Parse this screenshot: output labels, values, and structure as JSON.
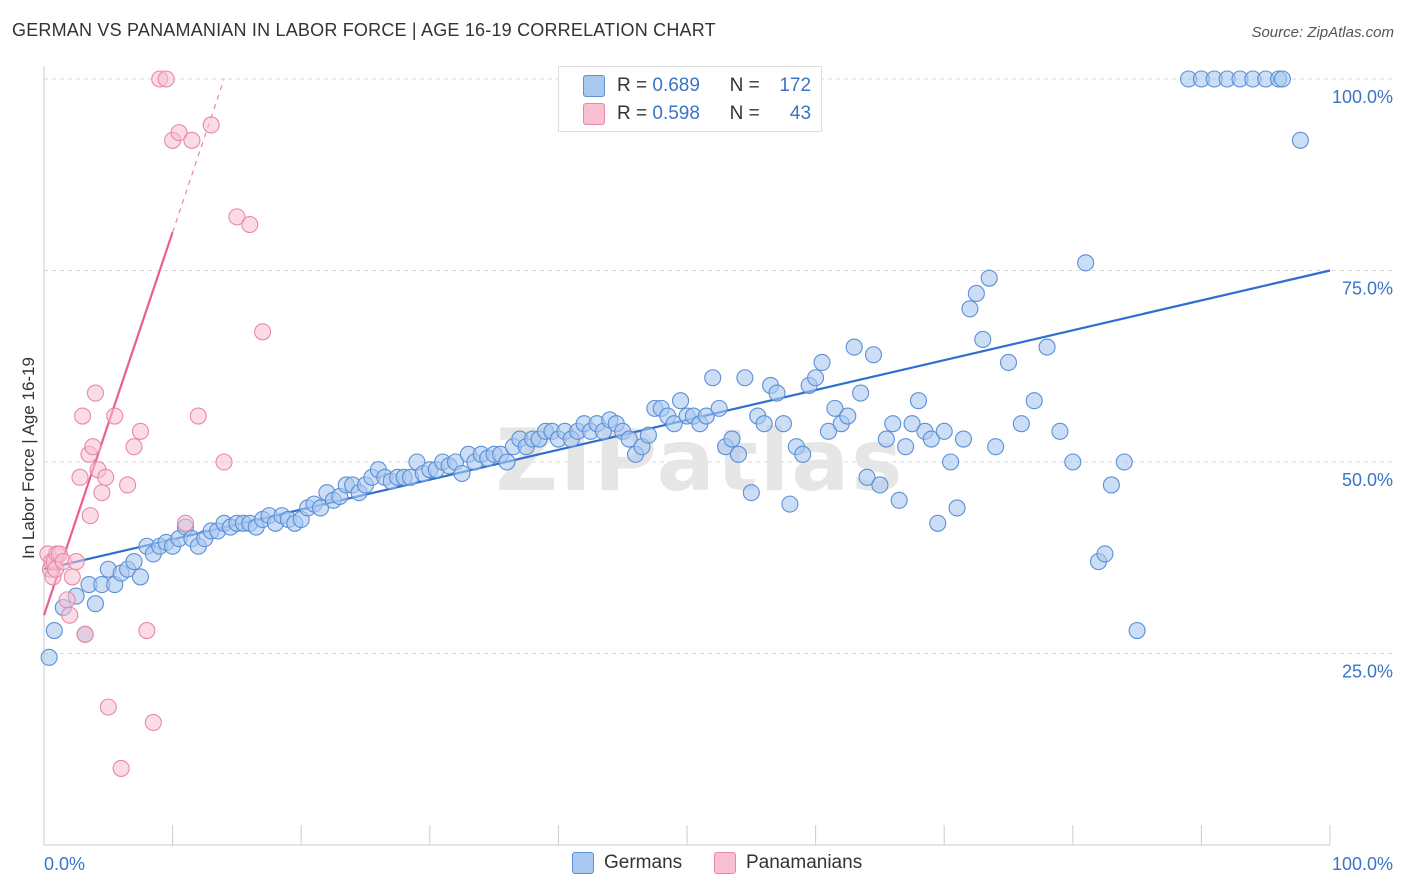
{
  "title": "GERMAN VS PANAMANIAN IN LABOR FORCE | AGE 16-19 CORRELATION CHART",
  "source": "Source: ZipAtlas.com",
  "watermark": "ZIPatlas",
  "stats_legend": {
    "rows": [
      {
        "r_label": "R =",
        "r_value": "0.689",
        "n_label": "N =",
        "n_value": "172"
      },
      {
        "r_label": "R =",
        "r_value": "0.598",
        "n_label": "N =",
        "n_value": "43"
      }
    ]
  },
  "colors": {
    "germans_fill": "#a9c8f0",
    "germans_stroke": "#5b8fd6",
    "germans_line": "#2f6fd0",
    "panamanians_fill": "#f8c0d0",
    "panamanians_stroke": "#e888a8",
    "panamanians_line": "#e8608e",
    "value_text": "#3a74c9"
  },
  "chart_data": {
    "type": "scatter",
    "title": "GERMAN VS PANAMANIAN IN LABOR FORCE | AGE 16-19 CORRELATION CHART",
    "ylabel": "In Labor Force | Age 16-19",
    "xlabel": "",
    "xlim": [
      0,
      100
    ],
    "ylim": [
      0,
      100
    ],
    "x_tick_labels": [
      {
        "value": 0,
        "label": "0.0%"
      },
      {
        "value": 100,
        "label": "100.0%"
      }
    ],
    "y_tick_labels": [
      {
        "value": 25,
        "label": "25.0%"
      },
      {
        "value": 50,
        "label": "50.0%"
      },
      {
        "value": 75,
        "label": "75.0%"
      },
      {
        "value": 100,
        "label": "100.0%"
      }
    ],
    "grid": true,
    "legend_position": "bottom-center",
    "series": [
      {
        "name": "Germans",
        "R": 0.689,
        "N": 172,
        "trend": {
          "x": [
            0,
            100
          ],
          "y": [
            36,
            75
          ],
          "dashed_beyond": null
        },
        "points": [
          [
            0.4,
            24.5
          ],
          [
            0.8,
            28
          ],
          [
            1.5,
            31
          ],
          [
            2.5,
            32.5
          ],
          [
            3.2,
            27.5
          ],
          [
            3.5,
            34
          ],
          [
            4,
            31.5
          ],
          [
            4.5,
            34
          ],
          [
            5,
            36
          ],
          [
            5.5,
            34
          ],
          [
            6,
            35.5
          ],
          [
            6.5,
            36
          ],
          [
            7,
            37
          ],
          [
            7.5,
            35
          ],
          [
            8,
            39
          ],
          [
            8.5,
            38
          ],
          [
            9,
            39
          ],
          [
            9.5,
            39.5
          ],
          [
            10,
            39
          ],
          [
            10.5,
            40
          ],
          [
            11,
            41.5
          ],
          [
            11.5,
            40
          ],
          [
            12,
            39
          ],
          [
            12.5,
            40
          ],
          [
            13,
            41
          ],
          [
            13.5,
            41
          ],
          [
            14,
            42
          ],
          [
            14.5,
            41.5
          ],
          [
            15,
            42
          ],
          [
            15.5,
            42
          ],
          [
            16,
            42
          ],
          [
            16.5,
            41.5
          ],
          [
            17,
            42.5
          ],
          [
            17.5,
            43
          ],
          [
            18,
            42
          ],
          [
            18.5,
            43
          ],
          [
            19,
            42.5
          ],
          [
            19.5,
            42
          ],
          [
            20,
            42.5
          ],
          [
            20.5,
            44
          ],
          [
            21,
            44.5
          ],
          [
            21.5,
            44
          ],
          [
            22,
            46
          ],
          [
            22.5,
            45
          ],
          [
            23,
            45.5
          ],
          [
            23.5,
            47
          ],
          [
            24,
            47
          ],
          [
            24.5,
            46
          ],
          [
            25,
            47
          ],
          [
            25.5,
            48
          ],
          [
            26,
            49
          ],
          [
            26.5,
            48
          ],
          [
            27,
            47.5
          ],
          [
            27.5,
            48
          ],
          [
            28,
            48
          ],
          [
            28.5,
            48
          ],
          [
            29,
            50
          ],
          [
            29.5,
            48.5
          ],
          [
            30,
            49
          ],
          [
            30.5,
            49
          ],
          [
            31,
            50
          ],
          [
            31.5,
            49.5
          ],
          [
            32,
            50
          ],
          [
            32.5,
            48.5
          ],
          [
            33,
            51
          ],
          [
            33.5,
            50
          ],
          [
            34,
            51
          ],
          [
            34.5,
            50.5
          ],
          [
            35,
            51
          ],
          [
            35.5,
            51
          ],
          [
            36,
            50
          ],
          [
            36.5,
            52
          ],
          [
            37,
            53
          ],
          [
            37.5,
            52
          ],
          [
            38,
            53
          ],
          [
            38.5,
            53
          ],
          [
            39,
            54
          ],
          [
            39.5,
            54
          ],
          [
            40,
            53
          ],
          [
            40.5,
            54
          ],
          [
            41,
            53
          ],
          [
            41.5,
            54
          ],
          [
            42,
            55
          ],
          [
            42.5,
            54
          ],
          [
            43,
            55
          ],
          [
            43.5,
            54
          ],
          [
            44,
            55.5
          ],
          [
            44.5,
            55
          ],
          [
            45,
            54
          ],
          [
            45.5,
            53
          ],
          [
            46,
            51
          ],
          [
            46.5,
            52
          ],
          [
            47,
            53.5
          ],
          [
            47.5,
            57
          ],
          [
            48,
            57
          ],
          [
            48.5,
            56
          ],
          [
            49,
            55
          ],
          [
            49.5,
            58
          ],
          [
            50,
            56
          ],
          [
            50.5,
            56
          ],
          [
            51,
            55
          ],
          [
            51.5,
            56
          ],
          [
            52,
            61
          ],
          [
            52.5,
            57
          ],
          [
            53,
            52
          ],
          [
            53.5,
            53
          ],
          [
            54,
            51
          ],
          [
            54.5,
            61
          ],
          [
            55,
            46
          ],
          [
            55.5,
            56
          ],
          [
            56,
            55
          ],
          [
            56.5,
            60
          ],
          [
            57,
            59
          ],
          [
            57.5,
            55
          ],
          [
            58,
            44.5
          ],
          [
            58.5,
            52
          ],
          [
            59,
            51
          ],
          [
            59.5,
            60
          ],
          [
            60,
            61
          ],
          [
            60.5,
            63
          ],
          [
            61,
            54
          ],
          [
            61.5,
            57
          ],
          [
            62,
            55
          ],
          [
            62.5,
            56
          ],
          [
            63,
            65
          ],
          [
            63.5,
            59
          ],
          [
            64,
            48
          ],
          [
            64.5,
            64
          ],
          [
            65,
            47
          ],
          [
            65.5,
            53
          ],
          [
            66,
            55
          ],
          [
            66.5,
            45
          ],
          [
            67,
            52
          ],
          [
            67.5,
            55
          ],
          [
            68,
            58
          ],
          [
            68.5,
            54
          ],
          [
            69,
            53
          ],
          [
            69.5,
            42
          ],
          [
            70,
            54
          ],
          [
            70.5,
            50
          ],
          [
            71,
            44
          ],
          [
            71.5,
            53
          ],
          [
            72,
            70
          ],
          [
            72.5,
            72
          ],
          [
            73,
            66
          ],
          [
            73.5,
            74
          ],
          [
            74,
            52
          ],
          [
            75,
            63
          ],
          [
            76,
            55
          ],
          [
            77,
            58
          ],
          [
            78,
            65
          ],
          [
            79,
            54
          ],
          [
            80,
            50
          ],
          [
            81,
            76
          ],
          [
            82,
            37
          ],
          [
            82.5,
            38
          ],
          [
            83,
            47
          ],
          [
            84,
            50
          ],
          [
            85,
            28
          ],
          [
            89,
            100
          ],
          [
            90,
            100
          ],
          [
            91,
            100
          ],
          [
            92,
            100
          ],
          [
            93,
            100
          ],
          [
            94,
            100
          ],
          [
            95,
            100
          ],
          [
            96,
            100
          ],
          [
            96.3,
            100
          ],
          [
            97.7,
            92
          ]
        ]
      },
      {
        "name": "Panamanians",
        "R": 0.598,
        "N": 43,
        "trend": {
          "x": [
            0,
            10
          ],
          "y": [
            30,
            80
          ],
          "dashed_to": [
            14,
            100
          ]
        },
        "points": [
          [
            0.3,
            38
          ],
          [
            0.5,
            36
          ],
          [
            0.6,
            37
          ],
          [
            0.7,
            35
          ],
          [
            0.8,
            37
          ],
          [
            0.9,
            36
          ],
          [
            1,
            38
          ],
          [
            1.2,
            38
          ],
          [
            1.5,
            37
          ],
          [
            1.8,
            32
          ],
          [
            2,
            30
          ],
          [
            2.2,
            35
          ],
          [
            2.5,
            37
          ],
          [
            2.8,
            48
          ],
          [
            3,
            56
          ],
          [
            3.2,
            27.5
          ],
          [
            3.5,
            51
          ],
          [
            3.6,
            43
          ],
          [
            3.8,
            52
          ],
          [
            4,
            59
          ],
          [
            4.2,
            49
          ],
          [
            4.5,
            46
          ],
          [
            4.8,
            48
          ],
          [
            5,
            18
          ],
          [
            5.5,
            56
          ],
          [
            6,
            10
          ],
          [
            6.5,
            47
          ],
          [
            7,
            52
          ],
          [
            7.5,
            54
          ],
          [
            8,
            28
          ],
          [
            8.5,
            16
          ],
          [
            9,
            100
          ],
          [
            9.5,
            100
          ],
          [
            10,
            92
          ],
          [
            10.5,
            93
          ],
          [
            11,
            42
          ],
          [
            11.5,
            92
          ],
          [
            12,
            56
          ],
          [
            13,
            94
          ],
          [
            14,
            50
          ],
          [
            15,
            82
          ],
          [
            16,
            81
          ],
          [
            17,
            67
          ]
        ]
      }
    ]
  },
  "bottom_legend": [
    {
      "label": "Germans"
    },
    {
      "label": "Panamanians"
    }
  ]
}
